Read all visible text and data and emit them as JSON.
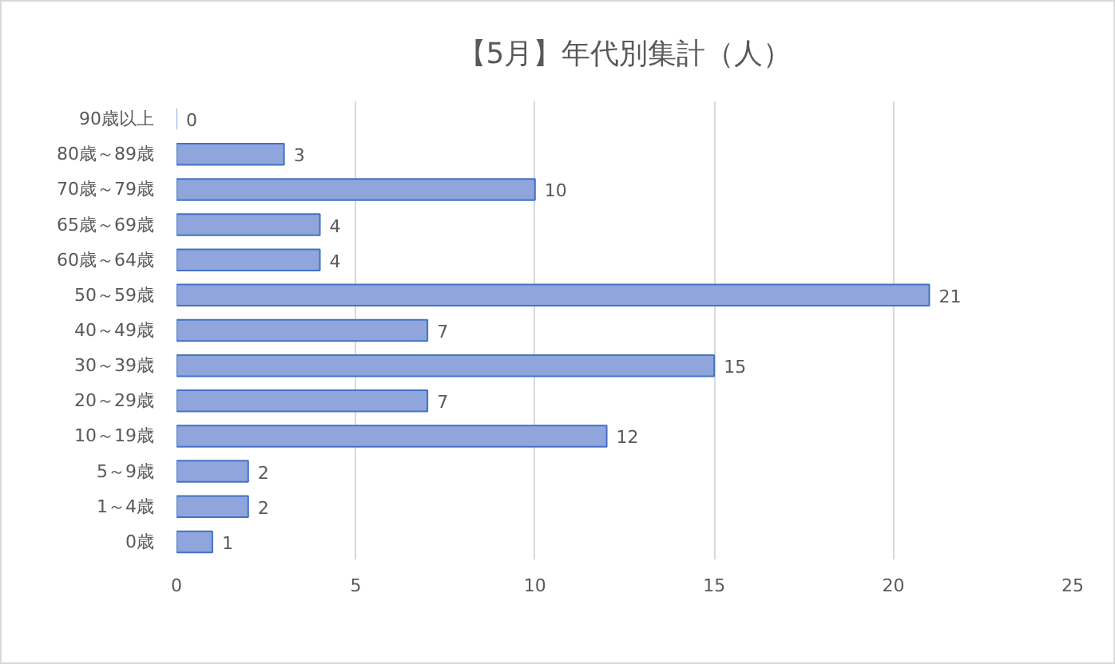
{
  "chart_data": {
    "type": "bar",
    "orientation": "horizontal",
    "title": "【5月】年代別集計（人）",
    "categories": [
      "90歳以上",
      "80歳～89歳",
      "70歳～79歳",
      "65歳～69歳",
      "60歳～64歳",
      "50～59歳",
      "40～49歳",
      "30～39歳",
      "20～29歳",
      "10～19歳",
      "5～9歳",
      "1～4歳",
      "0歳"
    ],
    "values": [
      0,
      3,
      10,
      4,
      4,
      21,
      7,
      15,
      7,
      12,
      2,
      2,
      1
    ],
    "color": "#8fa5dc",
    "xlim": [
      0,
      25
    ],
    "xticks": [
      0,
      5,
      10,
      15,
      20,
      25
    ],
    "grid": "x",
    "data_labels": true
  }
}
